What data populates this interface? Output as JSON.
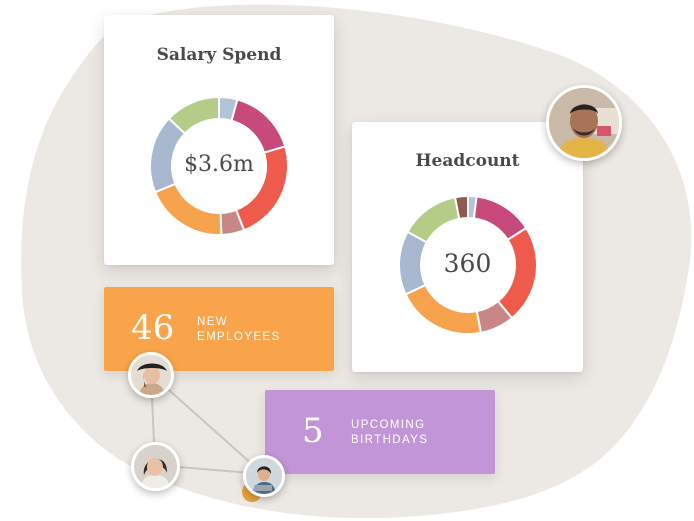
{
  "colors": {
    "background_blob": "#ece8e3",
    "card": "#ffffff",
    "text": "#4a4a4a",
    "new_employees_bg": "#f9a44a",
    "birthdays_bg": "#c195d6",
    "link_lines": "#c9c6c2",
    "yellow_dot": "#e9a23b"
  },
  "salary_card": {
    "title": "Salary Spend",
    "value": "$3.6m"
  },
  "headcount_card": {
    "title": "Headcount",
    "value": "360"
  },
  "new_employees": {
    "number": "46",
    "label_line1": "NEW",
    "label_line2": "EMPLOYEES"
  },
  "birthdays": {
    "number": "5",
    "label_line1": "UPCOMING",
    "label_line2": "BIRTHDAYS"
  },
  "avatars": [
    {
      "name": "avatar-man-icon"
    },
    {
      "name": "avatar-woman-hat-icon"
    },
    {
      "name": "avatar-woman-hair-icon"
    },
    {
      "name": "avatar-woman-laptop-icon"
    }
  ],
  "chart_data": [
    {
      "type": "pie",
      "title": "Salary Spend",
      "center_label": "$3.6m",
      "values": [
        4,
        15,
        22,
        5,
        18,
        17,
        12
      ],
      "colors": [
        "#b2c4d9",
        "#c8497c",
        "#ee5b4c",
        "#c88787",
        "#f7a24d",
        "#a7b8cf",
        "#b4cc88"
      ]
    },
    {
      "type": "pie",
      "title": "Headcount",
      "center_label": "360",
      "values": [
        2,
        14,
        23,
        8,
        21,
        15,
        14,
        3
      ],
      "colors": [
        "#b2c4d9",
        "#c8497c",
        "#ee5b4c",
        "#c88787",
        "#f7a24d",
        "#a7b8cf",
        "#b4cc88",
        "#8e5a4e"
      ]
    }
  ]
}
